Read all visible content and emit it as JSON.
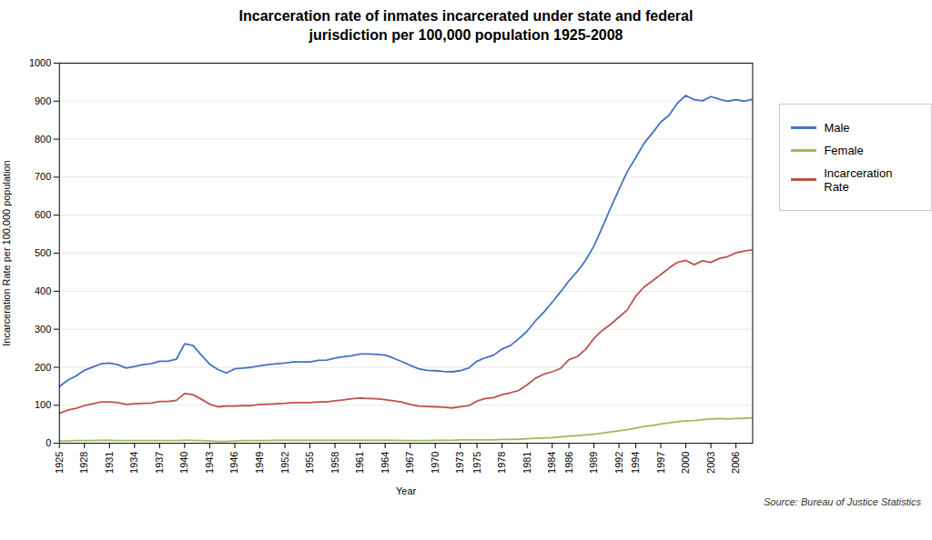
{
  "chart_data": {
    "type": "line",
    "title": "Incarceration rate of inmates incarcerated under state and federal\njurisdiction per 100,000 population 1925-2008",
    "xlabel": "Year",
    "ylabel": "Incarceration Rate per 100,000 population",
    "source": "Source: Bureau of Justice Statistics",
    "x": [
      1925,
      1926,
      1927,
      1928,
      1929,
      1930,
      1931,
      1932,
      1933,
      1934,
      1935,
      1936,
      1937,
      1938,
      1939,
      1940,
      1941,
      1942,
      1943,
      1944,
      1945,
      1946,
      1947,
      1948,
      1949,
      1950,
      1951,
      1952,
      1953,
      1954,
      1955,
      1956,
      1957,
      1958,
      1959,
      1960,
      1961,
      1962,
      1963,
      1964,
      1965,
      1966,
      1967,
      1968,
      1969,
      1970,
      1971,
      1972,
      1973,
      1974,
      1975,
      1976,
      1977,
      1978,
      1979,
      1980,
      1981,
      1982,
      1983,
      1984,
      1985,
      1986,
      1987,
      1988,
      1989,
      1990,
      1991,
      1992,
      1993,
      1994,
      1995,
      1996,
      1997,
      1998,
      1999,
      2000,
      2001,
      2002,
      2003,
      2004,
      2005,
      2006,
      2007,
      2008
    ],
    "series": [
      {
        "name": "Male",
        "color": "#4472C4",
        "values": [
          149,
          166,
          177,
          192,
          201,
          209,
          211,
          207,
          198,
          202,
          207,
          209,
          216,
          216,
          221,
          262,
          257,
          232,
          208,
          194,
          185,
          196,
          198,
          200,
          204,
          207,
          209,
          211,
          214,
          214,
          214,
          218,
          219,
          224,
          228,
          230,
          235,
          235,
          234,
          232,
          224,
          215,
          205,
          196,
          192,
          191,
          189,
          188,
          191,
          198,
          216,
          225,
          232,
          248,
          257,
          275,
          295,
          322,
          345,
          371,
          398,
          427,
          452,
          481,
          519,
          568,
          619,
          668,
          715,
          751,
          789,
          816,
          845,
          863,
          895,
          915,
          904,
          901,
          912,
          905,
          900,
          904,
          900,
          905
        ]
      },
      {
        "name": "Female",
        "color": "#9BBB59",
        "values": [
          6,
          6,
          7,
          7,
          7,
          8,
          8,
          7,
          7,
          7,
          7,
          7,
          7,
          7,
          7,
          8,
          8,
          7,
          6,
          5,
          5,
          6,
          7,
          7,
          7,
          7,
          8,
          8,
          8,
          8,
          8,
          8,
          8,
          8,
          8,
          8,
          8,
          8,
          8,
          8,
          8,
          7,
          7,
          7,
          7,
          8,
          8,
          8,
          9,
          9,
          9,
          9,
          9,
          10,
          10,
          11,
          12,
          13,
          14,
          15,
          17,
          19,
          20,
          22,
          24,
          27,
          30,
          33,
          36,
          40,
          44,
          47,
          51,
          54,
          57,
          59,
          60,
          62,
          64,
          65,
          64,
          65,
          66,
          67
        ]
      },
      {
        "name": "Incarceration Rate",
        "color": "#C0504D",
        "values": [
          79,
          87,
          92,
          99,
          104,
          109,
          109,
          107,
          102,
          104,
          105,
          106,
          110,
          110,
          113,
          131,
          128,
          116,
          103,
          96,
          98,
          98,
          99,
          99,
          102,
          103,
          104,
          105,
          107,
          107,
          107,
          109,
          109,
          112,
          114,
          117,
          119,
          118,
          117,
          115,
          112,
          108,
          102,
          98,
          97,
          96,
          95,
          93,
          96,
          99,
          111,
          118,
          120,
          128,
          133,
          139,
          154,
          171,
          182,
          188,
          197,
          220,
          228,
          247,
          276,
          297,
          313,
          332,
          351,
          387,
          411,
          427,
          444,
          461,
          476,
          481,
          470,
          480,
          476,
          486,
          491,
          501,
          506,
          509
        ]
      }
    ],
    "xlim": [
      1925,
      2008
    ],
    "xticks": [
      1925,
      1928,
      1931,
      1934,
      1937,
      1940,
      1943,
      1946,
      1949,
      1952,
      1955,
      1958,
      1961,
      1964,
      1967,
      1970,
      1973,
      1975,
      1978,
      1981,
      1984,
      1986,
      1989,
      1992,
      1994,
      1997,
      2000,
      2003,
      2006
    ],
    "ylim": [
      0,
      1000
    ],
    "yticks": [
      0,
      100,
      200,
      300,
      400,
      500,
      600,
      700,
      800,
      900,
      1000
    ],
    "grid": "y",
    "legend": "right"
  }
}
